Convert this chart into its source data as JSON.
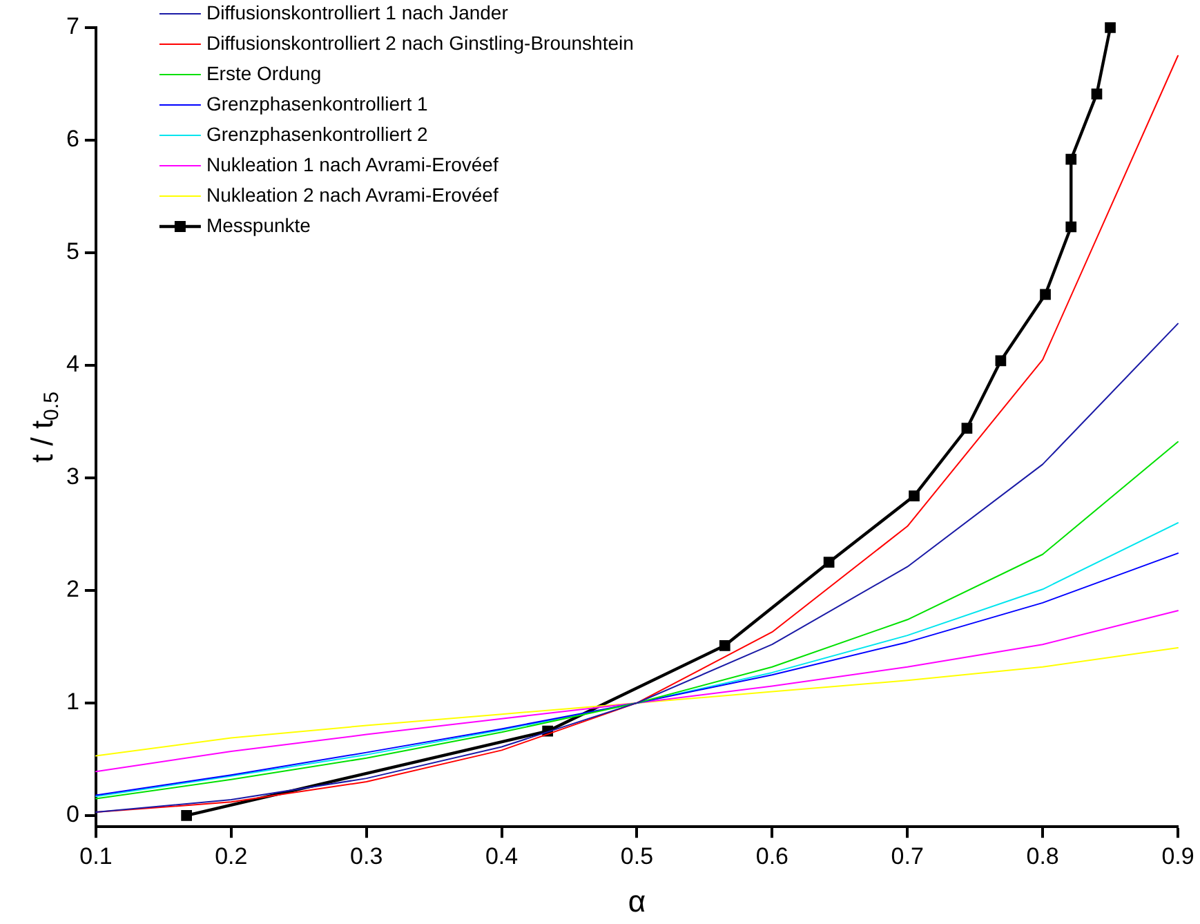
{
  "chart_data": {
    "type": "line",
    "xlabel": "α",
    "ylabel": "t / t$_{0.5}$",
    "x": [
      0.1,
      0.2,
      0.3,
      0.4,
      0.5,
      0.6,
      0.7,
      0.8,
      0.9
    ],
    "xlim": [
      0.1,
      0.9
    ],
    "xticks": [
      0.1,
      0.2,
      0.3,
      0.4,
      0.5,
      0.6,
      0.7,
      0.8,
      0.9
    ],
    "ylim": [
      -0.1,
      7
    ],
    "yticks": [
      0,
      1,
      2,
      3,
      4,
      5,
      6,
      7
    ],
    "legend": "top left",
    "marker": "none",
    "line_style": "solid",
    "series": [
      {
        "name": "Diffusionskontrolliert 1 nach Jander",
        "color": "#1a1aa6",
        "values": [
          0.03,
          0.14,
          0.33,
          0.61,
          1,
          1.52,
          2.21,
          3.12,
          4.37
        ]
      },
      {
        "name": "Diffusionskontrolliert 2 nach Ginstling-Brounshtein",
        "color": "#ff0000",
        "values": [
          0.03,
          0.12,
          0.3,
          0.58,
          1,
          1.63,
          2.57,
          4.05,
          6.75
        ]
      },
      {
        "name": "Erste Ordung",
        "color": "#00e000",
        "values": [
          0.15,
          0.32,
          0.51,
          0.74,
          1,
          1.32,
          1.74,
          2.32,
          3.32
        ]
      },
      {
        "name": "Grenzphasenkontrolliert 1",
        "color": "#0000ff",
        "values": [
          0.18,
          0.36,
          0.56,
          0.77,
          1,
          1.25,
          1.54,
          1.89,
          2.33
        ]
      },
      {
        "name": "Grenzphasenkontrolliert 2",
        "color": "#00e5ee",
        "values": [
          0.17,
          0.35,
          0.54,
          0.76,
          1,
          1.27,
          1.6,
          2.01,
          2.6
        ]
      },
      {
        "name": "Nukleation 1 nach Avrami-Erovéef",
        "color": "#ff00ff",
        "values": [
          0.39,
          0.57,
          0.72,
          0.86,
          1,
          1.15,
          1.32,
          1.52,
          1.82
        ]
      },
      {
        "name": "Nukleation 2 nach Avrami-Erovéef",
        "color": "#ffff00",
        "values": [
          0.53,
          0.69,
          0.8,
          0.9,
          1,
          1.1,
          1.2,
          1.32,
          1.49
        ]
      },
      {
        "name": "Messpunkte",
        "color": "#000000",
        "marker": "square",
        "x": [
          0.167,
          0.434,
          0.565,
          0.642,
          0.705,
          0.744,
          0.769,
          0.802,
          0.821,
          0.821,
          0.84,
          0.85
        ],
        "values": [
          0,
          0.75,
          1.51,
          2.25,
          2.84,
          3.44,
          4.04,
          4.63,
          5.23,
          5.83,
          6.41,
          7.0
        ]
      }
    ]
  }
}
